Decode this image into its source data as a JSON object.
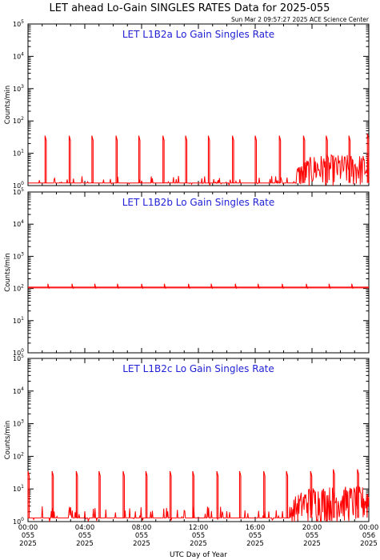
{
  "title": "LET ahead Lo-Gain SINGLES RATES Data for 2025-055",
  "timestamp": "Sun Mar  2 09:57:27 2025 ACE Science Center",
  "ylabel": "Counts/min",
  "xlabel": "UTC Day of Year",
  "colors": {
    "data": "#ff0000",
    "panel_title": "#1f1fd6",
    "axes": "#000000"
  },
  "chart_data": [
    {
      "type": "line",
      "title": "LET L1B2a Lo Gain Singles Rate",
      "yscale": "log",
      "ylim": [
        1,
        100000
      ],
      "ytick_labels": [
        {
          "base": "10",
          "exp": "0"
        },
        {
          "base": "10",
          "exp": "1"
        },
        {
          "base": "10",
          "exp": "2"
        },
        {
          "base": "10",
          "exp": "3"
        },
        {
          "base": "10",
          "exp": "4"
        },
        {
          "base": "10",
          "exp": "5"
        }
      ],
      "xlim": [
        0,
        24
      ],
      "baseline": 1.2,
      "baseline_jitter": [
        1,
        2
      ],
      "noisy_from_hour": 18.8,
      "noisy_range": [
        1,
        9
      ],
      "spikes": [
        {
          "x": 1.2,
          "y": 35
        },
        {
          "x": 2.9,
          "y": 35
        },
        {
          "x": 4.5,
          "y": 35
        },
        {
          "x": 6.2,
          "y": 35
        },
        {
          "x": 7.8,
          "y": 35
        },
        {
          "x": 9.5,
          "y": 35
        },
        {
          "x": 11.1,
          "y": 35
        },
        {
          "x": 12.7,
          "y": 35
        },
        {
          "x": 14.4,
          "y": 35
        },
        {
          "x": 16.0,
          "y": 35
        },
        {
          "x": 17.7,
          "y": 35
        },
        {
          "x": 19.4,
          "y": 35
        },
        {
          "x": 21.0,
          "y": 35
        },
        {
          "x": 22.6,
          "y": 35
        },
        {
          "x": 23.9,
          "y": 40
        }
      ]
    },
    {
      "type": "line",
      "title": "LET L1B2b Lo Gain Singles Rate",
      "yscale": "log",
      "ylim": [
        1,
        100000
      ],
      "ytick_labels": [
        {
          "base": "10",
          "exp": "0"
        },
        {
          "base": "10",
          "exp": "1"
        },
        {
          "base": "10",
          "exp": "2"
        },
        {
          "base": "10",
          "exp": "3"
        },
        {
          "base": "10",
          "exp": "4"
        },
        {
          "base": "10",
          "exp": "5"
        }
      ],
      "xlim": [
        0,
        24
      ],
      "baseline": 110,
      "spikes": [
        {
          "x": 1.4,
          "y": 140
        },
        {
          "x": 3.1,
          "y": 140
        },
        {
          "x": 4.7,
          "y": 140
        },
        {
          "x": 6.3,
          "y": 140
        },
        {
          "x": 8.0,
          "y": 140
        },
        {
          "x": 9.6,
          "y": 140
        },
        {
          "x": 11.3,
          "y": 140
        },
        {
          "x": 12.9,
          "y": 140
        },
        {
          "x": 14.6,
          "y": 140
        },
        {
          "x": 16.2,
          "y": 140
        },
        {
          "x": 17.9,
          "y": 140
        },
        {
          "x": 19.6,
          "y": 140
        },
        {
          "x": 21.2,
          "y": 140
        },
        {
          "x": 22.8,
          "y": 140
        }
      ]
    },
    {
      "type": "line",
      "title": "LET L1B2c Lo Gain Singles Rate",
      "yscale": "log",
      "ylim": [
        1,
        100000
      ],
      "ytick_labels": [
        {
          "base": "10",
          "exp": "0"
        },
        {
          "base": "10",
          "exp": "1"
        },
        {
          "base": "10",
          "exp": "2"
        },
        {
          "base": "10",
          "exp": "3"
        },
        {
          "base": "10",
          "exp": "4"
        },
        {
          "base": "10",
          "exp": "5"
        }
      ],
      "xlim": [
        0,
        24
      ],
      "baseline": 1.3,
      "baseline_jitter": [
        1,
        3
      ],
      "noisy_from_hour": 18.5,
      "noisy_range": [
        1,
        12
      ],
      "spikes": [
        {
          "x": 0.0,
          "y": 35
        },
        {
          "x": 1.7,
          "y": 35
        },
        {
          "x": 3.4,
          "y": 35
        },
        {
          "x": 5.0,
          "y": 35
        },
        {
          "x": 6.7,
          "y": 35
        },
        {
          "x": 8.3,
          "y": 35
        },
        {
          "x": 10.0,
          "y": 35
        },
        {
          "x": 11.6,
          "y": 35
        },
        {
          "x": 13.3,
          "y": 35
        },
        {
          "x": 14.9,
          "y": 35
        },
        {
          "x": 16.6,
          "y": 35
        },
        {
          "x": 18.2,
          "y": 35
        },
        {
          "x": 19.9,
          "y": 35
        },
        {
          "x": 21.5,
          "y": 40
        },
        {
          "x": 23.2,
          "y": 40
        }
      ]
    }
  ],
  "x_ticks": [
    {
      "hour": 0,
      "time": "00:00",
      "doy": "055",
      "year": "2025"
    },
    {
      "hour": 4,
      "time": "04:00",
      "doy": "055",
      "year": "2025"
    },
    {
      "hour": 8,
      "time": "08:00",
      "doy": "055",
      "year": "2025"
    },
    {
      "hour": 12,
      "time": "12:00",
      "doy": "055",
      "year": "2025"
    },
    {
      "hour": 16,
      "time": "16:00",
      "doy": "055",
      "year": "2025"
    },
    {
      "hour": 20,
      "time": "20:00",
      "doy": "055",
      "year": "2025"
    },
    {
      "hour": 24,
      "time": "00:00",
      "doy": "056",
      "year": "2025"
    }
  ]
}
